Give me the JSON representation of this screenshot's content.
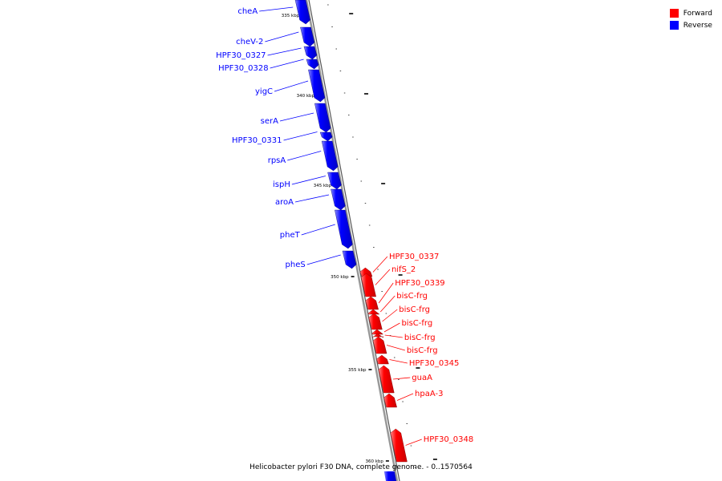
{
  "legend": {
    "items": [
      {
        "label": "Forward",
        "color": "#ff0000"
      },
      {
        "label": "Reverse",
        "color": "#0000ff"
      }
    ]
  },
  "caption": "Helicobacter pylori F30 DNA, complete genome. - 0..1570564",
  "axis": {
    "tick_labels": [
      "335 kbp",
      "340 kbp",
      "345 kbp",
      "350 kbp",
      "355 kbp",
      "360 kbp"
    ]
  },
  "genes": {
    "reverse": [
      "cheA",
      "cheV-2",
      "HPF30_0327",
      "HPF30_0328",
      "yigC",
      "serA",
      "HPF30_0331",
      "rpsA",
      "ispH",
      "aroA",
      "pheT",
      "pheS"
    ],
    "forward": [
      "HPF30_0337",
      "nifS_2",
      "HPF30_0339",
      "bisC-frg",
      "bisC-frg",
      "bisC-frg",
      "bisC-frg",
      "bisC-frg",
      "HPF30_0345",
      "guaA",
      "hpaA-3",
      "HPF30_0348"
    ]
  },
  "colors": {
    "forward": "#ff0000",
    "reverse": "#0000ff",
    "backbone": "#999999"
  }
}
